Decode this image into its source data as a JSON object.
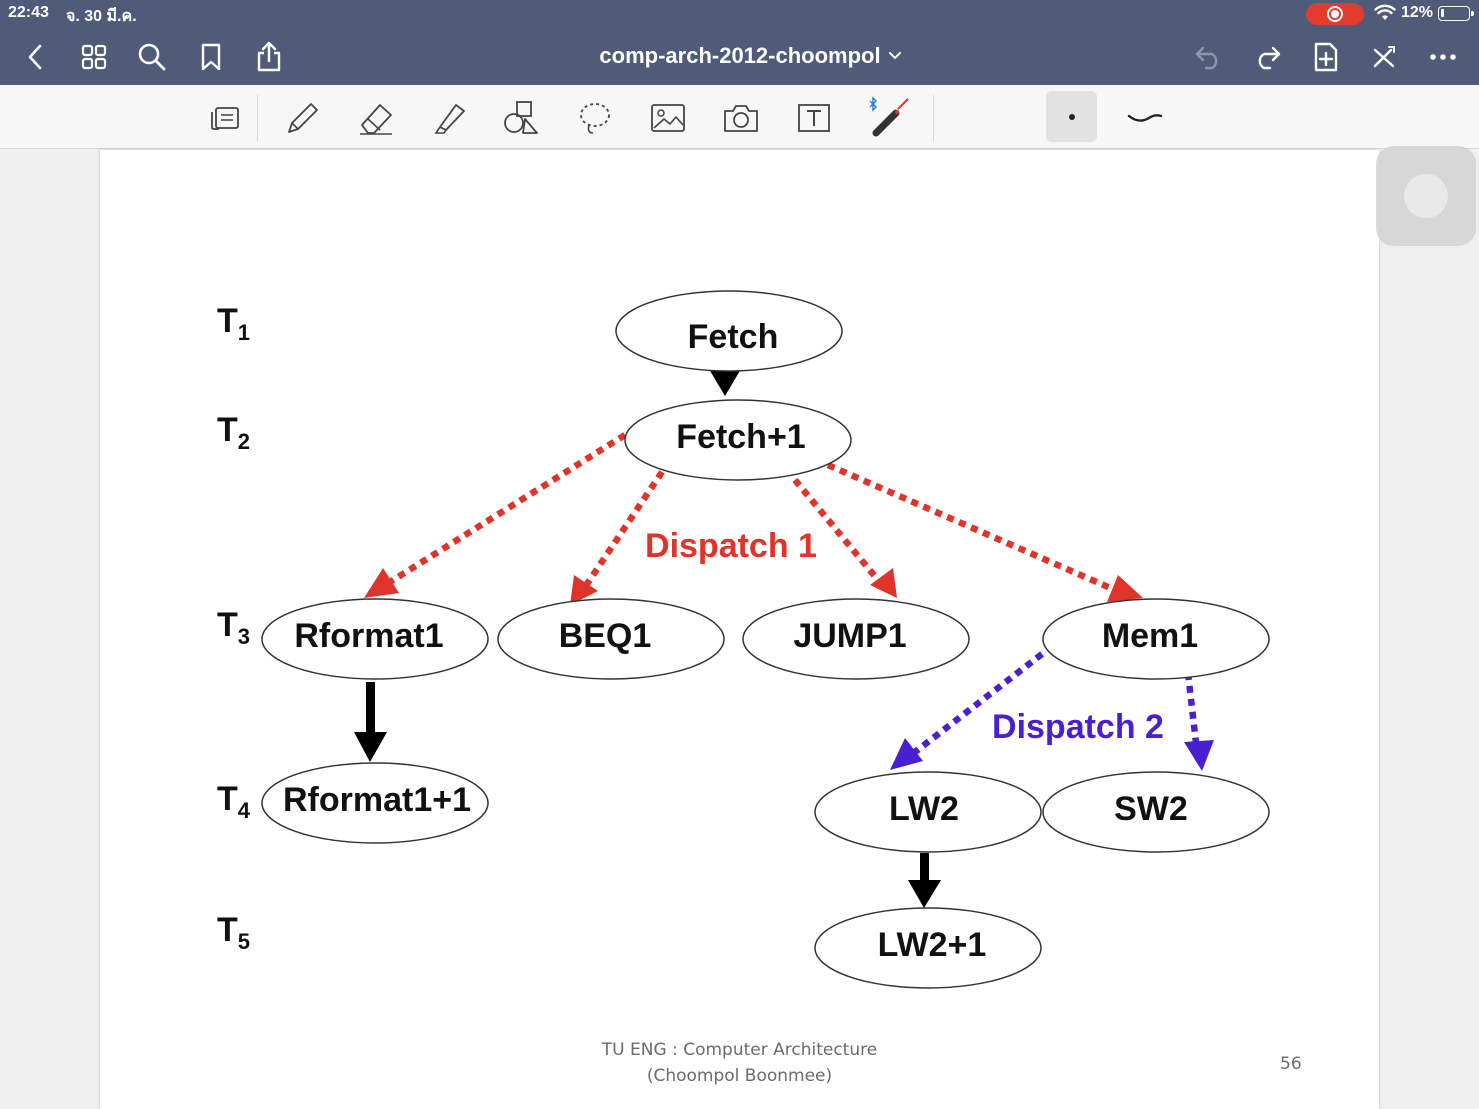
{
  "status_bar": {
    "time": "22:43",
    "date": "จ. 30 มี.ค.",
    "battery_percent": "12%",
    "battery_level": 0.12,
    "recording": true
  },
  "nav_bar": {
    "title": "comp-arch-2012-choompol",
    "left_icons": [
      "chevron-left-icon",
      "grid-icon",
      "search-icon",
      "bookmark-icon",
      "share-icon"
    ],
    "right_icons": [
      "undo-icon",
      "redo-icon",
      "add-page-icon",
      "close-icon",
      "more-icon"
    ]
  },
  "toolbar": {
    "tools": [
      "page-view-icon",
      "pen-icon",
      "eraser-icon",
      "highlighter-icon",
      "shapes-icon",
      "lasso-icon",
      "image-icon",
      "camera-icon",
      "text-icon",
      "laser-pointer-icon"
    ],
    "selected": "dot-size-icon",
    "extra": "stroke-style-icon"
  },
  "colors": {
    "nav_bg": "#4f5b79",
    "dispatch1": "#e03329",
    "dispatch2": "#4a1fd1",
    "arrow_solid": "#000000"
  },
  "diagram": {
    "time_labels": [
      {
        "base": "T",
        "sub": "1"
      },
      {
        "base": "T",
        "sub": "2"
      },
      {
        "base": "T",
        "sub": "3"
      },
      {
        "base": "T",
        "sub": "4"
      },
      {
        "base": "T",
        "sub": "5"
      }
    ],
    "states": {
      "fetch": "Fetch",
      "fetch1": "Fetch+1",
      "rformat1": "Rformat1",
      "beq1": "BEQ1",
      "jump1": "JUMP1",
      "mem1": "Mem1",
      "rformat1_1": "Rformat1+1",
      "lw2": "LW2",
      "sw2": "SW2",
      "lw2_1": "LW2+1"
    },
    "dispatch1_label": "Dispatch 1",
    "dispatch2_label": "Dispatch 2"
  },
  "footer": {
    "line1": "TU ENG : Computer Architecture",
    "line2": "(Choompol Boonmee)",
    "page_number": "56"
  }
}
